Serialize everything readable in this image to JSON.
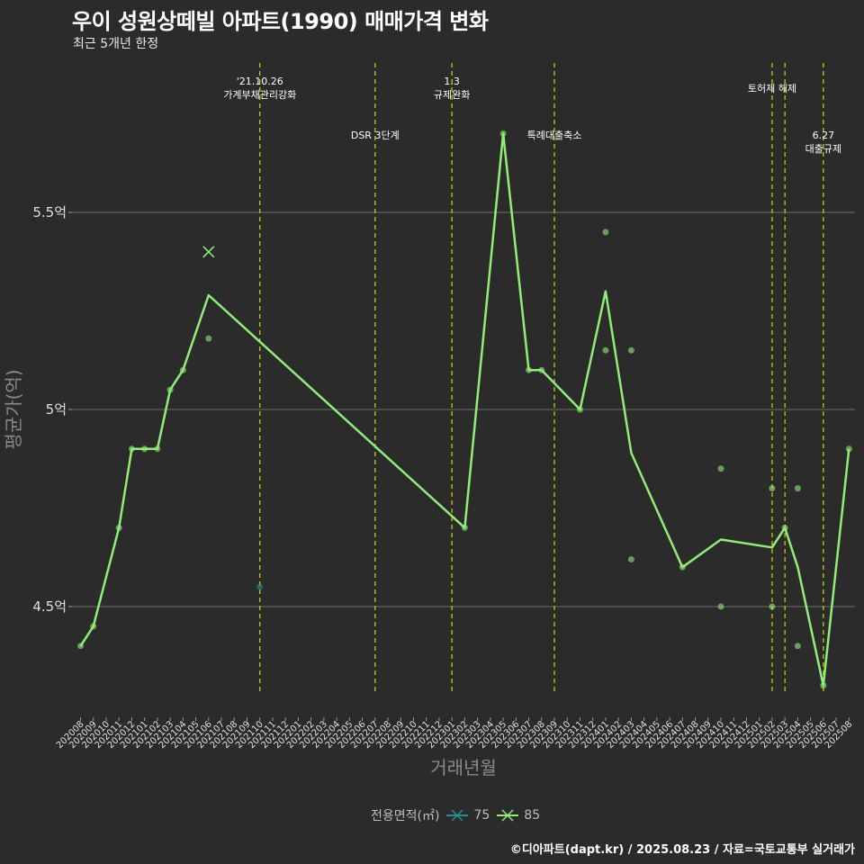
{
  "title": "우이 성원상떼빌 아파트(1990) 매매가격 변화",
  "subtitle": "최근 5개년 한정",
  "caption": "©디아파트(dapt.kr) / 2025.08.23 / 자료=국토교통부 실거래가",
  "legend": {
    "title": "전용면적(㎡)",
    "items": [
      {
        "label": "75",
        "color": "#2a8c8c"
      },
      {
        "label": "85",
        "color": "#90ee78"
      }
    ]
  },
  "chart_data": {
    "type": "line",
    "title": "우이 성원상떼빌 아파트(1990) 매매가격 변화",
    "subtitle": "최근 5개년 한정",
    "xlabel": "거래년월",
    "ylabel": "평균가(억)",
    "ylim": [
      4.23,
      5.75
    ],
    "yticks": [
      4.5,
      5.0,
      5.5
    ],
    "ytick_labels": [
      "4.5억",
      "5억",
      "5.5억"
    ],
    "categories": [
      "202008",
      "202009",
      "202010",
      "202011",
      "202012",
      "202101",
      "202102",
      "202103",
      "202104",
      "202105",
      "202106",
      "202107",
      "202108",
      "202109",
      "202110",
      "202111",
      "202112",
      "202201",
      "202202",
      "202203",
      "202204",
      "202205",
      "202206",
      "202207",
      "202208",
      "202209",
      "202210",
      "202211",
      "202212",
      "202301",
      "202302",
      "202303",
      "202304",
      "202305",
      "202306",
      "202307",
      "202308",
      "202309",
      "202310",
      "202311",
      "202312",
      "202401",
      "202402",
      "202403",
      "202404",
      "202405",
      "202406",
      "202407",
      "202408",
      "202409",
      "202410",
      "202411",
      "202412",
      "202501",
      "202502",
      "202503",
      "202504",
      "202505",
      "202506",
      "202507",
      "202508"
    ],
    "series": [
      {
        "name": "85",
        "color": "#90ee78",
        "line": [
          {
            "x": "202008",
            "y": 4.4
          },
          {
            "x": "202009",
            "y": 4.45
          },
          {
            "x": "202011",
            "y": 4.7
          },
          {
            "x": "202012",
            "y": 4.9
          },
          {
            "x": "202101",
            "y": 4.9
          },
          {
            "x": "202102",
            "y": 4.9
          },
          {
            "x": "202103",
            "y": 5.05
          },
          {
            "x": "202104",
            "y": 5.1
          },
          {
            "x": "202106",
            "y": 5.29
          },
          {
            "x": "202302",
            "y": 4.7
          },
          {
            "x": "202305",
            "y": 5.7
          },
          {
            "x": "202307",
            "y": 5.1
          },
          {
            "x": "202308",
            "y": 5.1
          },
          {
            "x": "202311",
            "y": 5.0
          },
          {
            "x": "202401",
            "y": 5.3
          },
          {
            "x": "202403",
            "y": 4.89
          },
          {
            "x": "202407",
            "y": 4.6
          },
          {
            "x": "202410",
            "y": 4.67
          },
          {
            "x": "202502",
            "y": 4.65
          },
          {
            "x": "202503",
            "y": 4.7
          },
          {
            "x": "202504",
            "y": 4.6
          },
          {
            "x": "202506",
            "y": 4.3
          },
          {
            "x": "202508",
            "y": 4.9
          }
        ],
        "points": [
          {
            "x": "202008",
            "y": 4.4
          },
          {
            "x": "202009",
            "y": 4.45
          },
          {
            "x": "202011",
            "y": 4.7
          },
          {
            "x": "202012",
            "y": 4.9
          },
          {
            "x": "202101",
            "y": 4.9
          },
          {
            "x": "202102",
            "y": 4.9
          },
          {
            "x": "202103",
            "y": 5.05
          },
          {
            "x": "202104",
            "y": 5.1
          },
          {
            "x": "202106",
            "y": 5.18
          },
          {
            "x": "202302",
            "y": 4.7
          },
          {
            "x": "202305",
            "y": 5.7
          },
          {
            "x": "202307",
            "y": 5.1
          },
          {
            "x": "202308",
            "y": 5.1
          },
          {
            "x": "202311",
            "y": 5.0
          },
          {
            "x": "202401",
            "y": 5.45
          },
          {
            "x": "202401",
            "y": 5.15
          },
          {
            "x": "202403",
            "y": 5.15
          },
          {
            "x": "202403",
            "y": 4.62
          },
          {
            "x": "202407",
            "y": 4.6
          },
          {
            "x": "202410",
            "y": 4.85
          },
          {
            "x": "202410",
            "y": 4.5
          },
          {
            "x": "202502",
            "y": 4.8
          },
          {
            "x": "202502",
            "y": 4.5
          },
          {
            "x": "202503",
            "y": 4.7
          },
          {
            "x": "202504",
            "y": 4.8
          },
          {
            "x": "202504",
            "y": 4.4
          },
          {
            "x": "202506",
            "y": 4.3
          },
          {
            "x": "202508",
            "y": 4.9
          }
        ],
        "crosses": [
          {
            "x": "202106",
            "y": 5.4
          }
        ]
      },
      {
        "name": "75",
        "color": "#2a8c8c",
        "points": [
          {
            "x": "202110",
            "y": 4.55
          }
        ]
      }
    ],
    "events": [
      {
        "x": 14.0,
        "lines": [
          "'21.10.26",
          "가계부채관리강화"
        ],
        "level": 1
      },
      {
        "x": 23.0,
        "lines": [
          "DSR 3단계"
        ],
        "level": 2
      },
      {
        "x": 29.0,
        "lines": [
          "1.3",
          "규제완화"
        ],
        "level": 1
      },
      {
        "x": 37.0,
        "lines": [
          "특례대출축소"
        ],
        "level": 2
      },
      {
        "x": 54.0,
        "lines": [
          "토허제 해제"
        ],
        "level": 1
      },
      {
        "x": 55.0,
        "lines": [],
        "level": 1
      },
      {
        "x": 58.0,
        "lines": [
          "6.27",
          "대출규제"
        ],
        "level": 2
      }
    ]
  }
}
